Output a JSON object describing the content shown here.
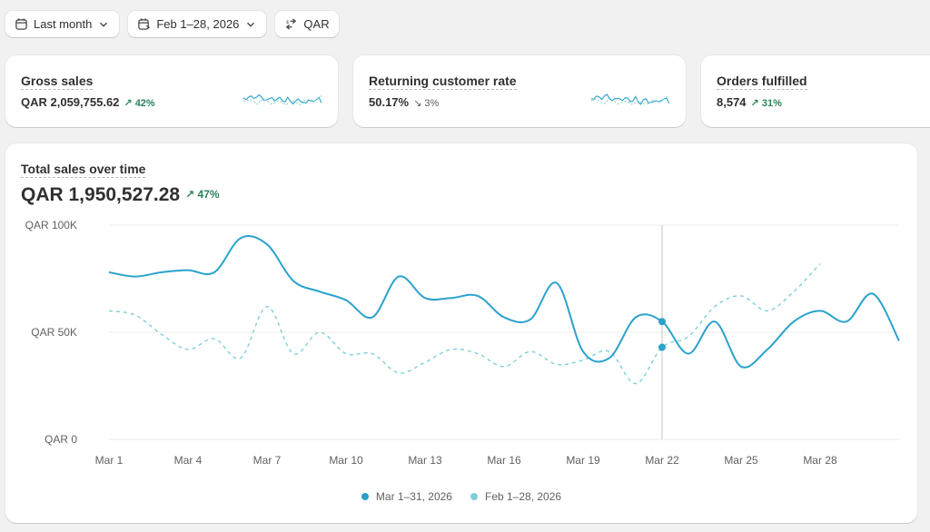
{
  "toolbar": {
    "period_label": "Last month",
    "date_range_label": "Feb 1–28, 2026",
    "currency_label": "QAR"
  },
  "metrics": [
    {
      "title": "Gross sales",
      "value": "QAR 2,059,755.62",
      "delta": "42%",
      "direction": "up"
    },
    {
      "title": "Returning customer rate",
      "value": "50.17%",
      "delta": "3%",
      "direction": "down"
    },
    {
      "title": "Orders fulfilled",
      "value": "8,574",
      "delta": "31%",
      "direction": "up"
    }
  ],
  "main": {
    "title": "Total sales over time",
    "total": "QAR 1,950,527.28",
    "delta": "47%"
  },
  "colors": {
    "current": "#2aa2cc",
    "previous": "#7ecfd8",
    "positive": "#29845a",
    "crosshair": "#c4c4c4"
  },
  "chart_data": {
    "type": "line",
    "title": "Total sales over time",
    "ylabel": "",
    "xlabel": "",
    "yticks": [
      "QAR 100K",
      "QAR 50K",
      "QAR 0"
    ],
    "ylim": [
      0,
      100000
    ],
    "xticks": [
      "Mar 1",
      "Mar 4",
      "Mar 7",
      "Mar 10",
      "Mar 13",
      "Mar 16",
      "Mar 19",
      "Mar 22",
      "Mar 25",
      "Mar 28"
    ],
    "grid": true,
    "legend_position": "bottom",
    "crosshair_x": 22,
    "series": [
      {
        "name": "Mar 1–31, 2026",
        "style": "solid",
        "x": [
          1,
          2,
          3,
          4,
          5,
          6,
          7,
          8,
          9,
          10,
          11,
          12,
          13,
          14,
          15,
          16,
          17,
          18,
          19,
          20,
          21,
          22,
          23,
          24,
          25,
          26,
          27,
          28,
          29,
          30,
          31
        ],
        "values": [
          78000,
          76000,
          78000,
          79000,
          78000,
          94000,
          91000,
          74000,
          69000,
          65000,
          57000,
          76000,
          66000,
          66000,
          67000,
          57000,
          56000,
          73000,
          41000,
          38000,
          57000,
          55000,
          40000,
          55000,
          34000,
          42000,
          55000,
          60000,
          55000,
          68000,
          46000
        ]
      },
      {
        "name": "Feb 1–28, 2026",
        "style": "dashed",
        "x": [
          1,
          2,
          3,
          4,
          5,
          6,
          7,
          8,
          9,
          10,
          11,
          12,
          13,
          14,
          15,
          16,
          17,
          18,
          19,
          20,
          21,
          22,
          23,
          24,
          25,
          26,
          27,
          28
        ],
        "values": [
          60000,
          58000,
          49000,
          42000,
          47000,
          38000,
          62000,
          40000,
          50000,
          40000,
          40000,
          31000,
          36000,
          42000,
          40000,
          34000,
          41000,
          35000,
          37000,
          41000,
          26000,
          43000,
          48000,
          62000,
          67000,
          60000,
          69000,
          82000
        ]
      }
    ]
  }
}
